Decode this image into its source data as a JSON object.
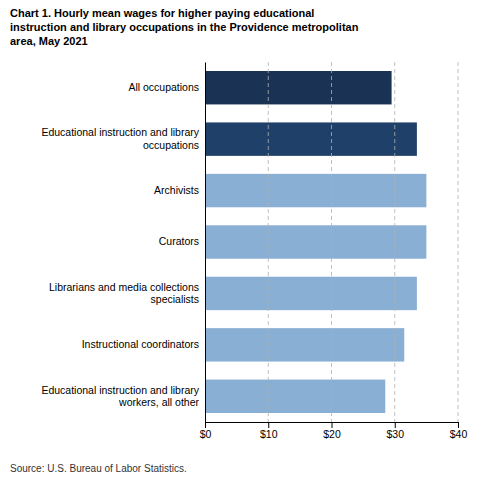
{
  "chart_data": {
    "type": "bar",
    "orientation": "horizontal",
    "title": "Chart 1. Hourly mean wages for higher paying educational\ninstruction and library occupations in the Providence metropolitan\narea, May 2021",
    "categories": [
      "Educational instruction and library\nworkers, all other",
      "Instructional coordinators",
      "Librarians and media collections\nspecialists",
      "Curators",
      "Archivists",
      "Educational instruction and library\noccupations",
      "All occupations"
    ],
    "values": [
      28.5,
      31.5,
      33.5,
      35.0,
      35.0,
      33.5,
      29.5
    ],
    "colors": [
      "#8aafd4",
      "#8aafd4",
      "#8aafd4",
      "#8aafd4",
      "#8aafd4",
      "#1f4068",
      "#1a3355"
    ],
    "xlim": [
      0,
      40
    ],
    "xticks": [
      {
        "value": 0,
        "label": "$0"
      },
      {
        "value": 10,
        "label": "$10"
      },
      {
        "value": 20,
        "label": "$20"
      },
      {
        "value": 30,
        "label": "$30"
      },
      {
        "value": 40,
        "label": "$40"
      }
    ],
    "grid": true,
    "source": "Source: U.S. Bureau of Labor Statistics."
  }
}
